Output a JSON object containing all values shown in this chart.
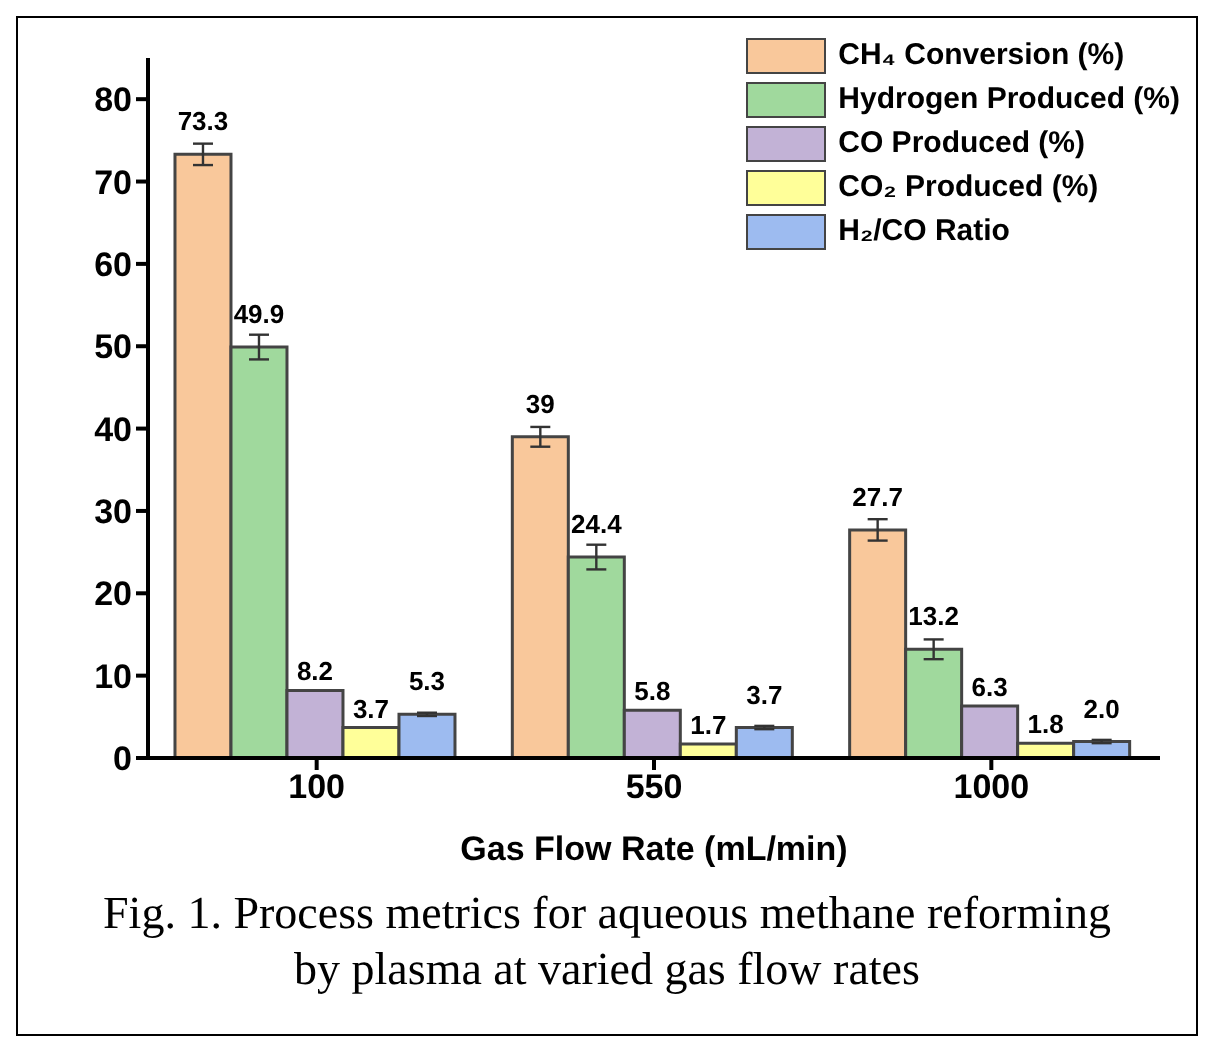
{
  "chart_data": {
    "type": "bar",
    "categories": [
      "100",
      "550",
      "1000"
    ],
    "xlabel": "Gas Flow Rate (mL/min)",
    "ylim": [
      0,
      85
    ],
    "yticks": [
      0,
      10,
      20,
      30,
      40,
      50,
      60,
      70,
      80
    ],
    "grid": false,
    "legend": "top right",
    "series": [
      {
        "name": "CH₄ Conversion (%)",
        "color": "#f9c89b",
        "values": [
          73.3,
          39,
          27.7
        ],
        "errors": [
          1.3,
          1.2,
          1.3
        ],
        "value_labels": [
          "73.3",
          "39",
          "27.7"
        ]
      },
      {
        "name": "Hydrogen Produced (%)",
        "color": "#a0d99d",
        "values": [
          49.9,
          24.4,
          13.2
        ],
        "errors": [
          1.5,
          1.5,
          1.2
        ],
        "value_labels": [
          "49.9",
          "24.4",
          "13.2"
        ]
      },
      {
        "name": "CO Produced (%)",
        "color": "#c2b2d6",
        "values": [
          8.2,
          5.8,
          6.3
        ],
        "value_labels": [
          "8.2",
          "5.8",
          "6.3"
        ]
      },
      {
        "name": "CO₂ Produced (%)",
        "color": "#ffff99",
        "values": [
          3.7,
          1.7,
          1.8
        ],
        "value_labels": [
          "3.7",
          "1.7",
          "1.8"
        ]
      },
      {
        "name": "H₂/CO Ratio",
        "color": "#9dbbf0",
        "values": [
          5.3,
          3.7,
          2.0
        ],
        "errors": [
          0.2,
          0.2,
          0.2
        ],
        "value_labels": [
          "5.3",
          "3.7",
          "2.0"
        ]
      }
    ],
    "annotations": [
      "Fig. 1. Process metrics for aqueous methane reforming by plasma at varied gas flow rates"
    ]
  }
}
